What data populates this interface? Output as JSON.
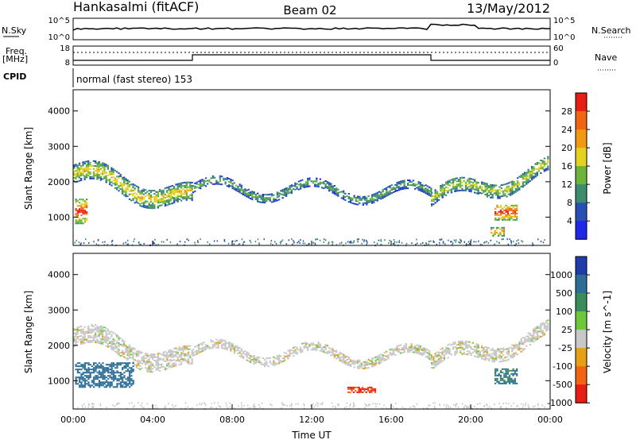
{
  "header": {
    "station": "Hankasalmi (fitACF)",
    "beam": "Beam 02",
    "date": "13/May/2012"
  },
  "top_panels": {
    "nsky_label": "N.Sky",
    "nsearch_label": "N.Search",
    "nsky_ticks": [
      "10^5",
      "10^0"
    ],
    "nsearch_ticks": [
      "10^5",
      "10^0"
    ],
    "freq_label": "Freq.",
    "freq_unit": "[MHz]",
    "freq_ticks": [
      "18",
      "8"
    ],
    "nave_label": "Nave",
    "nave_ticks": [
      "60",
      "0"
    ],
    "cpid_label": "CPID",
    "cpid_text": "normal (fast stereo) 153"
  },
  "chart_data": [
    {
      "type": "heatmap",
      "name": "power",
      "xlabel": "",
      "ylabel": "Slant Range [km]",
      "ylim": [
        200,
        4600
      ],
      "yticks": [
        1000,
        2000,
        3000,
        4000
      ],
      "colorbar_label": "Power [dB]",
      "colorbar_ticks": [
        4,
        8,
        12,
        16,
        20,
        24,
        28
      ],
      "colorbar_colors": [
        "#1e28e6",
        "#2850b4",
        "#3c8c6e",
        "#6eb43c",
        "#e6d21e",
        "#f09a14",
        "#f06414",
        "#e61e14"
      ],
      "regions": [
        {
          "t": [
            0.0,
            6.0
          ],
          "center": [
            2200,
            1450
          ],
          "width": 250,
          "power": 18
        },
        {
          "t": [
            6.0,
            18.0
          ],
          "center": [
            1800,
            1650
          ],
          "width": 120,
          "power": 12
        },
        {
          "t": [
            18.0,
            24.0
          ],
          "center": [
            1500,
            2300
          ],
          "width": 200,
          "power": 16
        },
        {
          "t": [
            0.1,
            0.7
          ],
          "range": [
            800,
            1500
          ],
          "power": 28
        },
        {
          "t": [
            21.2,
            22.3
          ],
          "range": [
            900,
            1350
          ],
          "power": 28
        },
        {
          "t": [
            21.0,
            21.7
          ],
          "range": [
            450,
            700
          ],
          "power": 24
        }
      ]
    },
    {
      "type": "heatmap",
      "name": "velocity",
      "xlabel": "Time UT",
      "ylabel": "Slant Range [km]",
      "ylim": [
        200,
        4600
      ],
      "yticks": [
        1000,
        2000,
        3000,
        4000
      ],
      "xticks": [
        "00:00",
        "04:00",
        "08:00",
        "12:00",
        "16:00",
        "20:00",
        "00:00"
      ],
      "colorbar_label": "Velocity [m s^-1]",
      "colorbar_ticks": [
        1000,
        500,
        100,
        25,
        -25,
        -100,
        -500,
        -1000
      ],
      "colorbar_colors": [
        "#1e3caa",
        "#2d6e96",
        "#3c8c5a",
        "#6ec83c",
        "#c8c8c8",
        "#e6a014",
        "#f06414",
        "#e61e14"
      ],
      "regions": [
        {
          "t": [
            0.0,
            6.0
          ],
          "center": [
            2200,
            1450
          ],
          "width": 250,
          "velocity": 0
        },
        {
          "t": [
            6.0,
            18.0
          ],
          "center": [
            1800,
            1650
          ],
          "width": 120,
          "velocity": 0
        },
        {
          "t": [
            18.0,
            24.0
          ],
          "center": [
            1500,
            2300
          ],
          "width": 200,
          "velocity": 0
        },
        {
          "t": [
            0.1,
            3.0
          ],
          "range": [
            800,
            1500
          ],
          "velocity": 500
        },
        {
          "t": [
            21.2,
            22.3
          ],
          "range": [
            900,
            1350
          ],
          "velocity": 300
        },
        {
          "t": [
            13.8,
            15.2
          ],
          "range": [
            650,
            800
          ],
          "velocity": -300
        }
      ]
    }
  ]
}
